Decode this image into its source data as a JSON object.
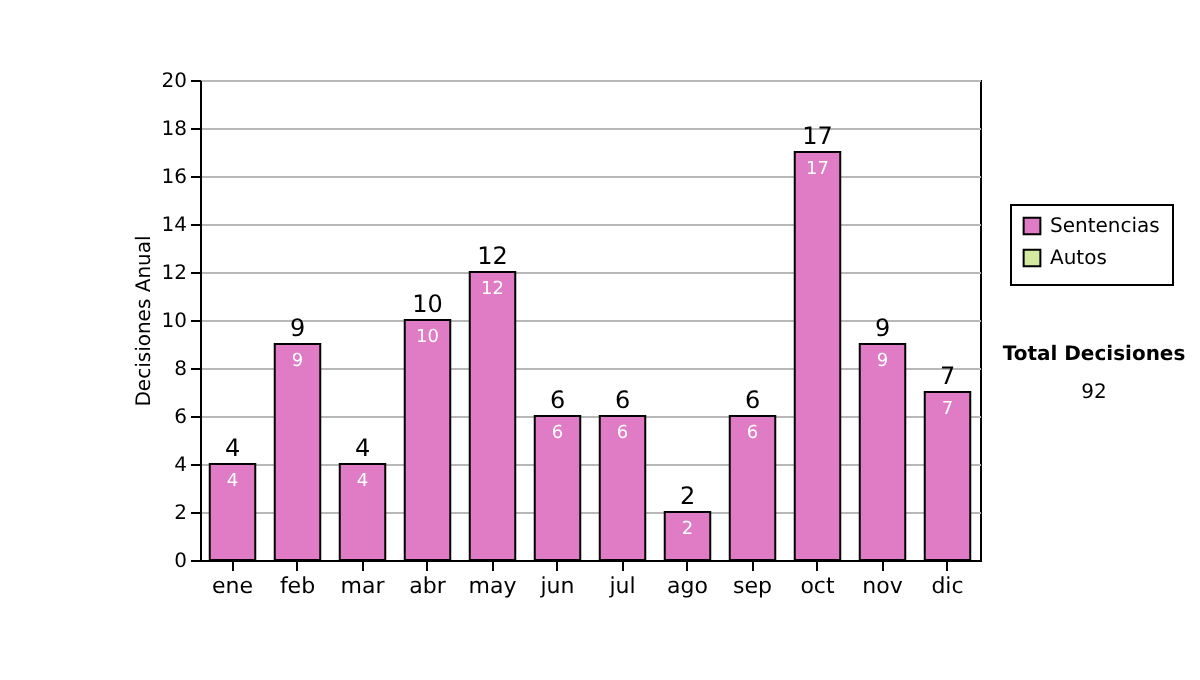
{
  "chart_data": {
    "type": "bar",
    "ylabel": "Decisiones Anual",
    "categories": [
      "ene",
      "feb",
      "mar",
      "abr",
      "may",
      "jun",
      "jul",
      "ago",
      "sep",
      "oct",
      "nov",
      "dic"
    ],
    "series": [
      {
        "name": "Sentencias",
        "color": "#e07cc6",
        "values": [
          4,
          9,
          4,
          10,
          12,
          6,
          6,
          2,
          6,
          17,
          9,
          7
        ],
        "value_labels": [
          "4",
          "9",
          "4",
          "10",
          "12",
          "6",
          "6",
          "2",
          "6",
          "17",
          "9",
          "7"
        ]
      },
      {
        "name": "Autos",
        "color": "#d4eaa0",
        "values": [
          0,
          0,
          0,
          0,
          0,
          0,
          0,
          0,
          0,
          0,
          0,
          0
        ]
      }
    ],
    "stacked": true,
    "totals": [
      "4",
      "9",
      "4",
      "10",
      "12",
      "6",
      "6",
      "2",
      "6",
      "17",
      "9",
      "7"
    ],
    "ylim": [
      0,
      20
    ],
    "yticks": [
      0,
      2,
      4,
      6,
      8,
      10,
      12,
      14,
      16,
      18,
      20
    ],
    "grid": "y",
    "legend": "right",
    "annotations": [
      "Total Decisiones",
      "92"
    ]
  }
}
